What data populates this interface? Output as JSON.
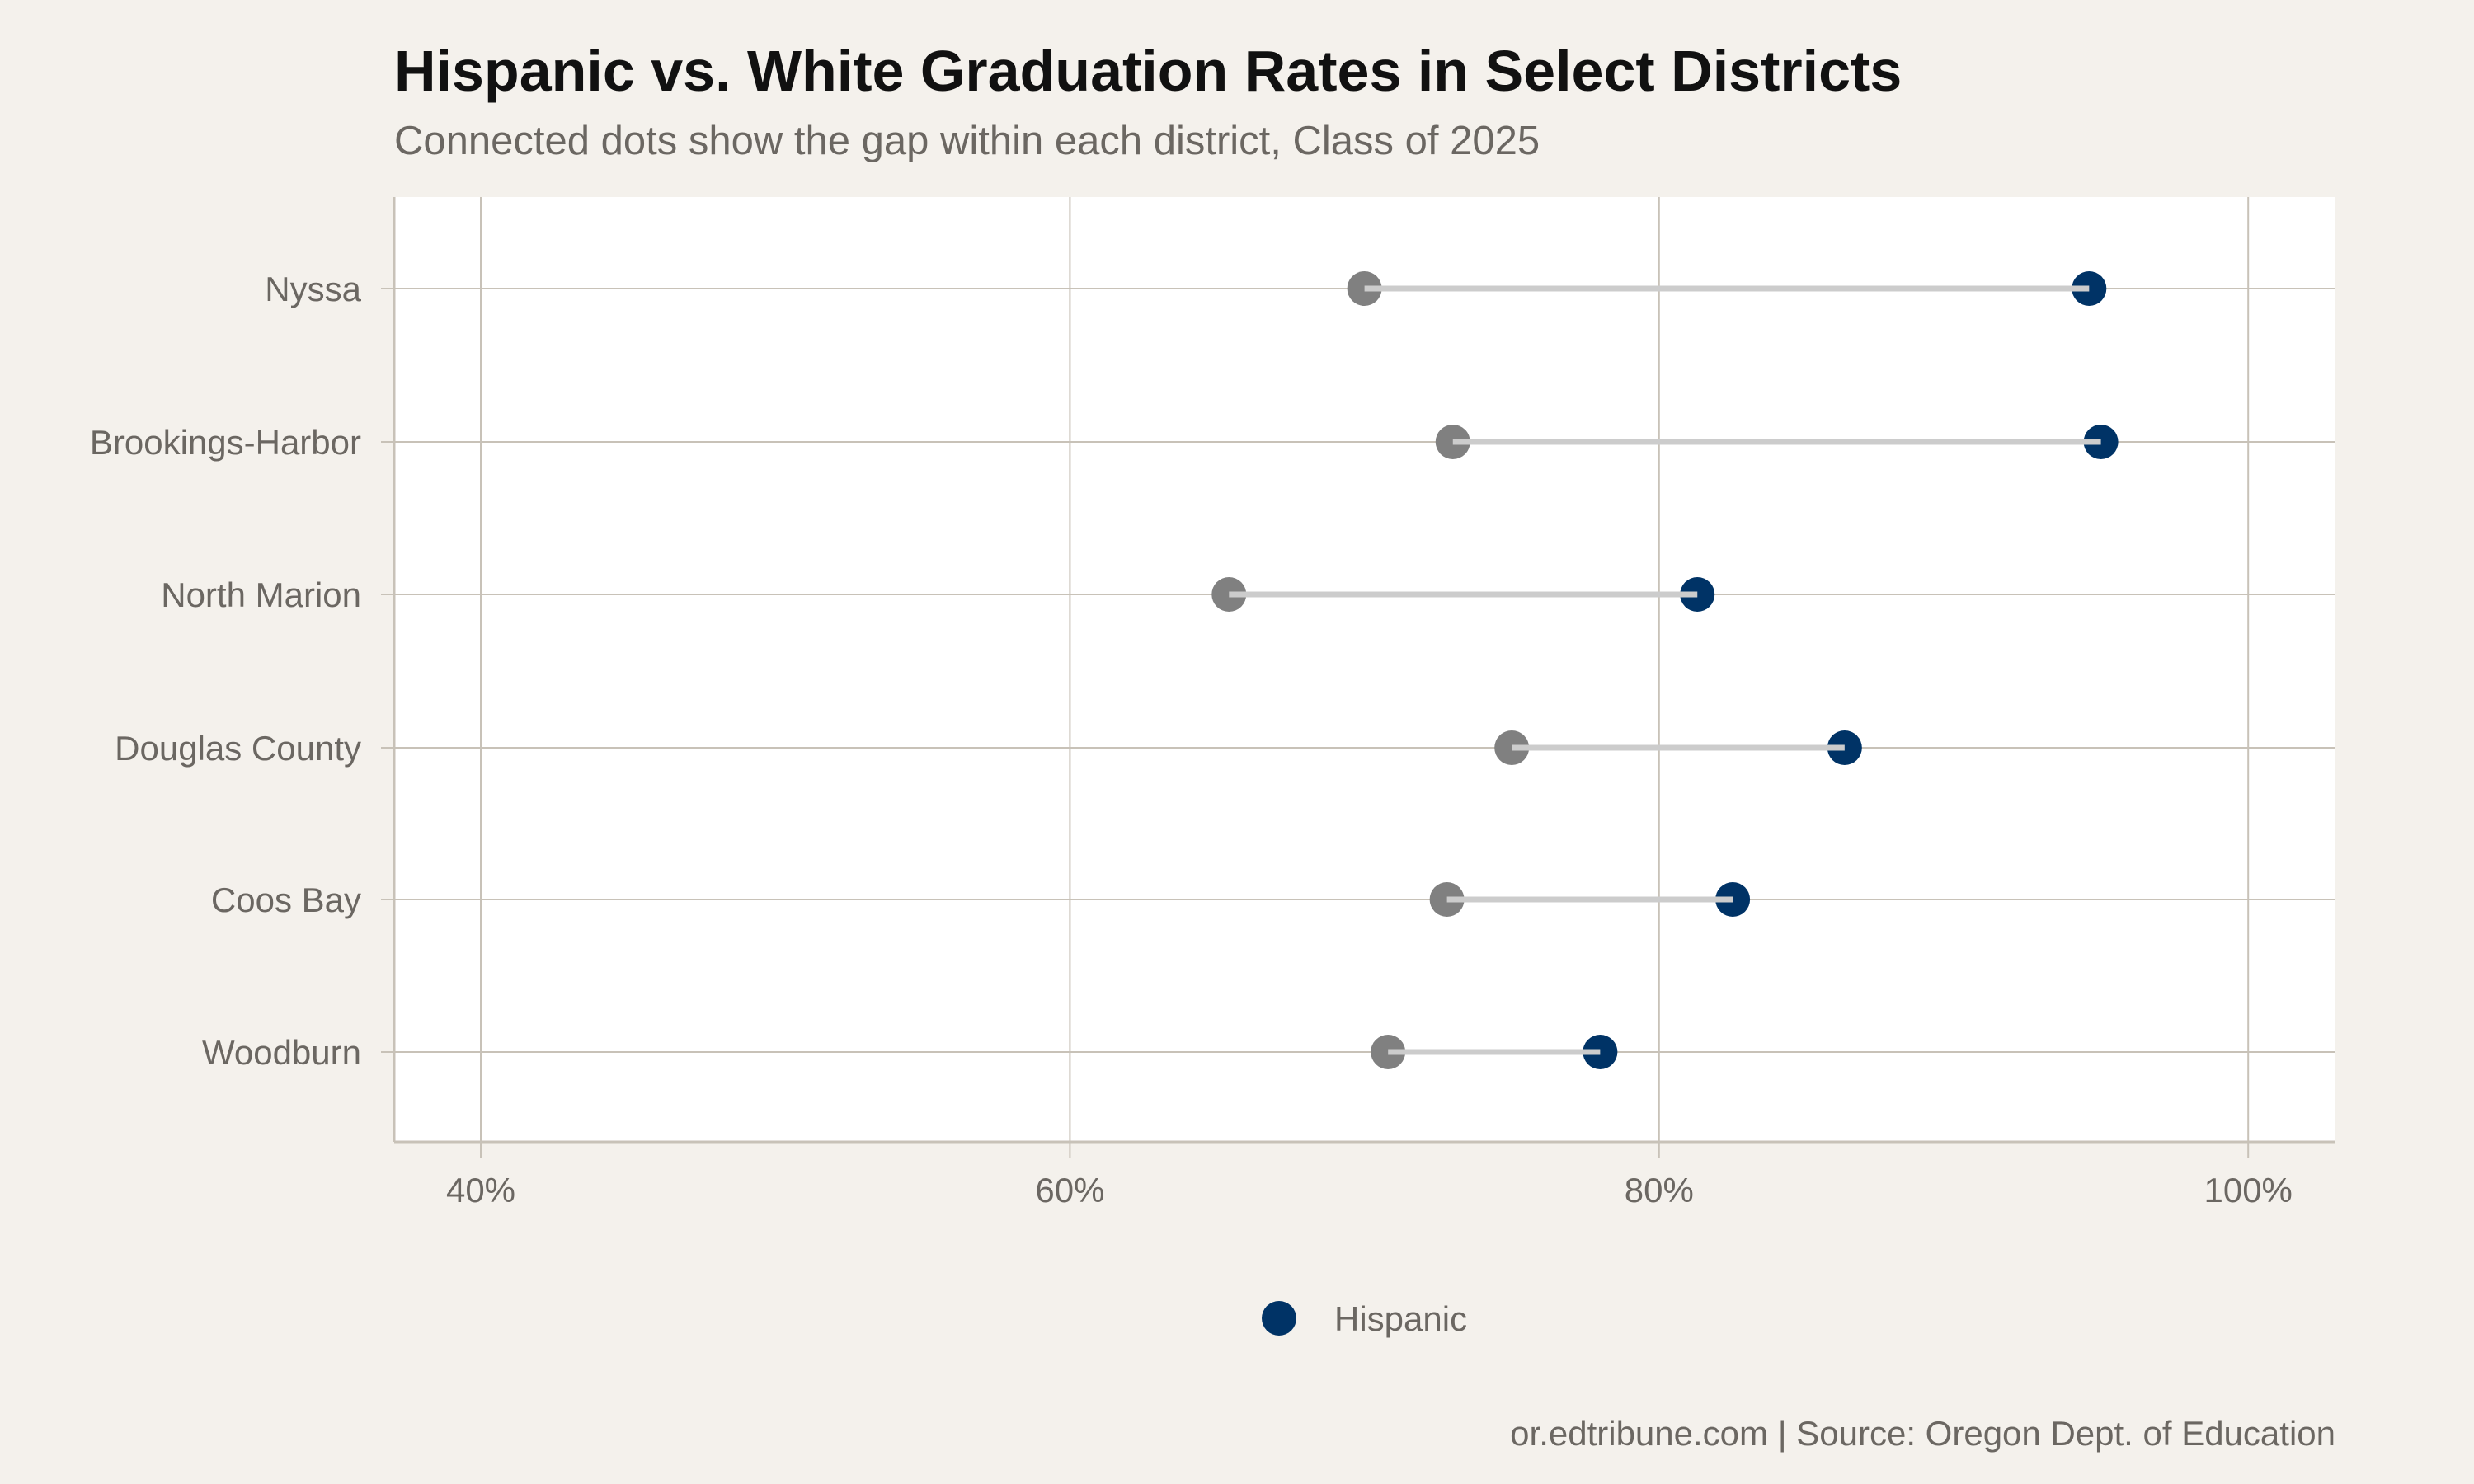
{
  "chart_data": {
    "type": "dumbbell",
    "title": "Hispanic vs. White Graduation Rates in Select Districts",
    "subtitle": "Connected dots show the gap within each district, Class of 2025",
    "caption": "or.edtribune.com | Source: Oregon Dept. of Education",
    "categories": [
      "Nyssa",
      "Brookings-Harbor",
      "North Marion",
      "Douglas County",
      "Coos Bay",
      "Woodburn"
    ],
    "series": [
      {
        "name": "Hispanic",
        "color": "#003366",
        "values": [
          94.6,
          95.0,
          81.3,
          86.3,
          82.5,
          78.0
        ]
      },
      {
        "color": "#808080",
        "values": [
          70.0,
          73.0,
          65.4,
          75.0,
          72.8,
          70.8
        ]
      }
    ],
    "segment_color": "#cccccc",
    "x_ticks": [
      40,
      60,
      80,
      100
    ],
    "x_tick_labels": [
      "40%",
      "60%",
      "80%",
      "100%"
    ],
    "xlim": [
      37,
      103
    ],
    "grid": true,
    "legend": {
      "position": "bottom",
      "entries": [
        "Hispanic"
      ]
    }
  }
}
